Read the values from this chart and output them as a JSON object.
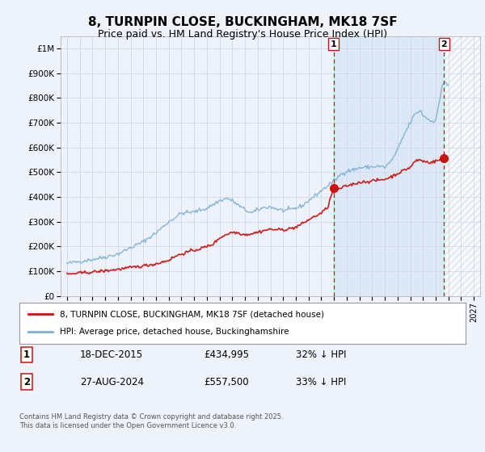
{
  "title": "8, TURNPIN CLOSE, BUCKINGHAM, MK18 7SF",
  "subtitle": "Price paid vs. HM Land Registry's House Price Index (HPI)",
  "title_fontsize": 11,
  "subtitle_fontsize": 9,
  "bg_color": "#eef2fb",
  "plot_bg_color": "#eef2fb",
  "grid_color": "#d0d8e8",
  "hpi_color": "#7ab0d4",
  "price_color": "#cc1111",
  "vline_color": "#cc1111",
  "shade_color": "#dce8f5",
  "hatch_color": "#c8d4e0",
  "ylim": [
    0,
    1050000
  ],
  "yticks": [
    0,
    100000,
    200000,
    300000,
    400000,
    500000,
    600000,
    700000,
    800000,
    900000,
    1000000
  ],
  "ytick_labels": [
    "£0",
    "£100K",
    "£200K",
    "£300K",
    "£400K",
    "£500K",
    "£600K",
    "£700K",
    "£800K",
    "£900K",
    "£1M"
  ],
  "xlim_start": 1994.5,
  "xlim_end": 2027.5,
  "marker1_year": 2015.97,
  "marker1_price": 434995,
  "marker1_label": "1",
  "marker2_year": 2024.65,
  "marker2_price": 557500,
  "marker2_label": "2",
  "legend_entries": [
    "8, TURNPIN CLOSE, BUCKINGHAM, MK18 7SF (detached house)",
    "HPI: Average price, detached house, Buckinghamshire"
  ],
  "annotation1": [
    "1",
    "18-DEC-2015",
    "£434,995",
    "32% ↓ HPI"
  ],
  "annotation2": [
    "2",
    "27-AUG-2024",
    "£557,500",
    "33% ↓ HPI"
  ],
  "footnote": "Contains HM Land Registry data © Crown copyright and database right 2025.\nThis data is licensed under the Open Government Licence v3.0."
}
